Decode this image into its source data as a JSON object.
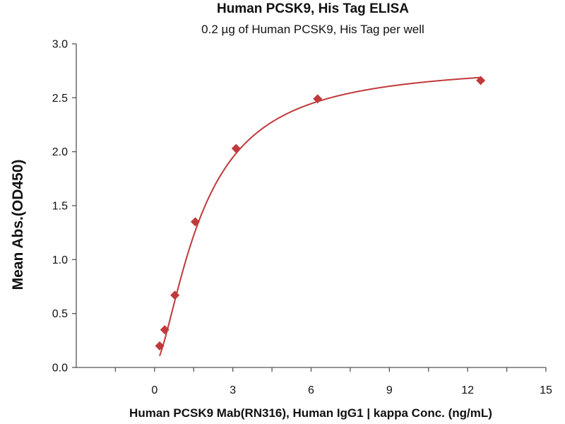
{
  "chart_data": {
    "type": "scatter",
    "title": "Human PCSK9, His Tag ELISA",
    "subtitle": "0.2 µg of Human PCSK9, His Tag per well",
    "xlabel": "Human PCSK9 Mab(RN316), Human IgG1 | kappa Conc. (ng/mL)",
    "ylabel": "Mean Abs.(OD450)",
    "xlim": [
      -3,
      15
    ],
    "ylim": [
      0,
      3
    ],
    "x_ticks": [
      0,
      3,
      6,
      9,
      12,
      15
    ],
    "x_tick_labels": [
      "0",
      "3",
      "6",
      "9",
      "12",
      "15"
    ],
    "x_minor_ticks": [
      -1.5,
      1.5,
      4.5,
      7.5,
      10.5,
      13.5
    ],
    "y_ticks": [
      0,
      0.5,
      1,
      1.5,
      2,
      2.5,
      3
    ],
    "y_tick_labels": [
      "0.0",
      "0.5",
      "1.0",
      "1.5",
      "2.0",
      "2.5",
      "3.0"
    ],
    "grid": false,
    "marker_color": "#c0393b",
    "curve_color": "#c0393b",
    "series": [
      {
        "x": [
          0.195,
          0.39,
          0.78,
          1.56,
          3.125,
          6.25,
          12.5
        ],
        "y": [
          0.2,
          0.35,
          0.67,
          1.35,
          2.03,
          2.49,
          2.66
        ]
      }
    ],
    "fit_curve": {
      "type": "4PL",
      "bottom": 0.02,
      "top": 2.82,
      "ec50": 1.8,
      "hill": 1.55,
      "x_range": [
        0.195,
        12.5
      ]
    }
  }
}
